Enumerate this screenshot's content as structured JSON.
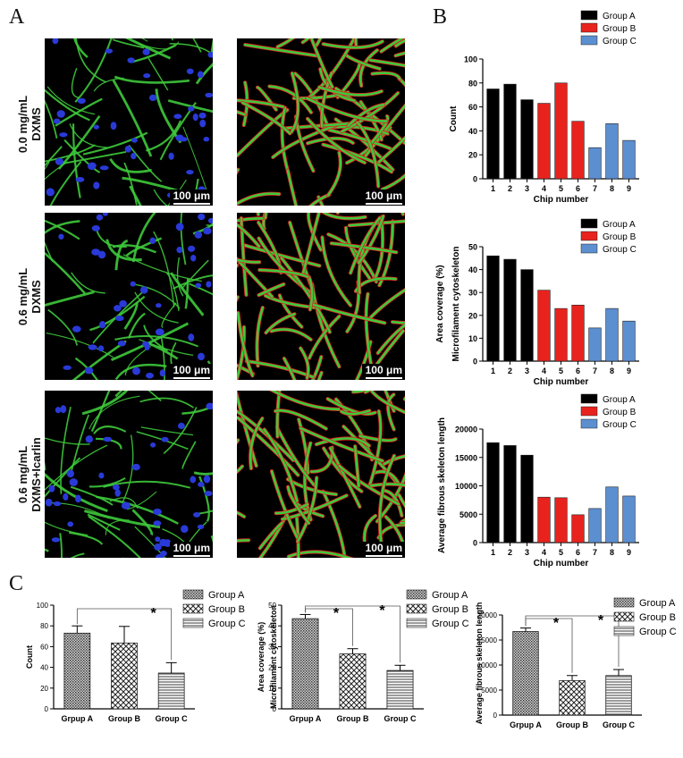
{
  "panel_letters": {
    "a": "A",
    "b": "B",
    "c": "C"
  },
  "panelA": {
    "rows": [
      {
        "line1": "0.0 mg/mL",
        "line2": "DXMS"
      },
      {
        "line1": "0.6 mg/mL",
        "line2": "DXMS"
      },
      {
        "line1": "0.6 mg/mL",
        "line2": "DXMS+Icarlin"
      }
    ],
    "scale_bar": "100 μm",
    "colors": {
      "filament": "#3ec93b",
      "nucleus": "#2a3ad8",
      "outline": "#e02020",
      "background": "#000000"
    }
  },
  "chart_data": [
    {
      "type": "bar",
      "panel": "B",
      "categories": [
        "1",
        "2",
        "3",
        "4",
        "5",
        "6",
        "7",
        "8",
        "9"
      ],
      "values": [
        75,
        79,
        66,
        63,
        80,
        48,
        26,
        46,
        32
      ],
      "groups": [
        "Group A",
        "Group A",
        "Group A",
        "Group B",
        "Group B",
        "Group B",
        "Group C",
        "Group C",
        "Group C"
      ],
      "legend": [
        {
          "name": "Group A",
          "color": "#000000"
        },
        {
          "name": "Group B",
          "color": "#e8231e"
        },
        {
          "name": "Group C",
          "color": "#5b8fd0"
        }
      ],
      "xlabel": "Chip number",
      "ylabel": "Count",
      "ylabel2": "",
      "ylim": [
        0,
        100
      ],
      "yticks": [
        "0",
        "20",
        "40",
        "60",
        "80",
        "100"
      ],
      "legend_position": "top-right"
    },
    {
      "type": "bar",
      "panel": "B",
      "categories": [
        "1",
        "2",
        "3",
        "4",
        "5",
        "6",
        "7",
        "8",
        "9"
      ],
      "values": [
        46,
        44.5,
        40,
        31,
        23,
        24.5,
        14.5,
        23,
        17.5
      ],
      "groups": [
        "Group A",
        "Group A",
        "Group A",
        "Group B",
        "Group B",
        "Group B",
        "Group C",
        "Group C",
        "Group C"
      ],
      "legend": [
        {
          "name": "Group A",
          "color": "#000000"
        },
        {
          "name": "Group B",
          "color": "#e8231e"
        },
        {
          "name": "Group C",
          "color": "#5b8fd0"
        }
      ],
      "xlabel": "Chip number",
      "ylabel": "Area  coverage  (%)",
      "ylabel2": "Microfilament cytoskeleton",
      "ylim": [
        0,
        50
      ],
      "yticks": [
        "0",
        "10",
        "20",
        "30",
        "40",
        "50"
      ],
      "legend_position": "top-right"
    },
    {
      "type": "bar",
      "panel": "B",
      "categories": [
        "1",
        "2",
        "3",
        "4",
        "5",
        "6",
        "7",
        "8",
        "9"
      ],
      "values": [
        17600,
        17100,
        15400,
        8000,
        7900,
        4900,
        6000,
        9800,
        8200
      ],
      "groups": [
        "Group A",
        "Group A",
        "Group A",
        "Group B",
        "Group B",
        "Group B",
        "Group C",
        "Group C",
        "Group C"
      ],
      "legend": [
        {
          "name": "Group A",
          "color": "#000000"
        },
        {
          "name": "Group B",
          "color": "#e8231e"
        },
        {
          "name": "Group C",
          "color": "#5b8fd0"
        }
      ],
      "xlabel": "Chip number",
      "ylabel": "Average fibrous skeleton  length",
      "ylabel2": "",
      "ylim": [
        0,
        20000
      ],
      "yticks": [
        "0",
        "5000",
        "10000",
        "15000",
        "20000"
      ],
      "legend_position": "top-right"
    },
    {
      "type": "bar",
      "panel": "C",
      "categories": [
        "Grpup A",
        "Group B",
        "Group C"
      ],
      "values": [
        73,
        63.5,
        34.5
      ],
      "errors": [
        7,
        16,
        10
      ],
      "legend": [
        {
          "name": "Group A",
          "pattern": "dense"
        },
        {
          "name": "Group B",
          "pattern": "check"
        },
        {
          "name": "Group C",
          "pattern": "hstripe"
        }
      ],
      "ylabel": "Count",
      "ylabel2": "",
      "ylim": [
        0,
        100
      ],
      "yticks": [
        "0",
        "20",
        "40",
        "60",
        "80",
        "100"
      ],
      "significance": [
        {
          "from": "Grpup A",
          "to": "Group C",
          "label": "*"
        }
      ],
      "legend_position": "top-right"
    },
    {
      "type": "bar",
      "panel": "C",
      "categories": [
        "Grpup A",
        "Group B",
        "Group C"
      ],
      "values": [
        43.5,
        26.5,
        18.5
      ],
      "errors": [
        2,
        2.5,
        2.5
      ],
      "legend": [
        {
          "name": "Group A",
          "pattern": "dense"
        },
        {
          "name": "Group B",
          "pattern": "check"
        },
        {
          "name": "Group C",
          "pattern": "hstripe"
        }
      ],
      "ylabel": "Area  coverage  (%)",
      "ylabel2": "Microfilament cytoskeleton",
      "ylim": [
        0,
        50
      ],
      "yticks": [
        "0",
        "10",
        "20",
        "30",
        "40",
        "50"
      ],
      "significance": [
        {
          "from": "Grpup A",
          "to": "Group B",
          "label": "*"
        },
        {
          "from": "Grpup A",
          "to": "Group C",
          "label": "*"
        }
      ],
      "legend_position": "top-right"
    },
    {
      "type": "bar",
      "panel": "C",
      "categories": [
        "Grpup A",
        "Group B",
        "Group C"
      ],
      "values": [
        16700,
        6900,
        7900
      ],
      "errors": [
        700,
        1000,
        1200
      ],
      "legend": [
        {
          "name": "Group A",
          "pattern": "dense"
        },
        {
          "name": "Group B",
          "pattern": "check"
        },
        {
          "name": "Group C",
          "pattern": "hstripe"
        }
      ],
      "ylabel": "Average fibrous skeleton  length",
      "ylabel2": "",
      "ylim": [
        0,
        20000
      ],
      "yticks": [
        "0",
        "5000",
        "10000",
        "15000",
        "20000"
      ],
      "significance": [
        {
          "from": "Grpup A",
          "to": "Group B",
          "label": "*"
        },
        {
          "from": "Grpup A",
          "to": "Group C",
          "label": "*"
        }
      ],
      "legend_position": "top-right"
    }
  ]
}
